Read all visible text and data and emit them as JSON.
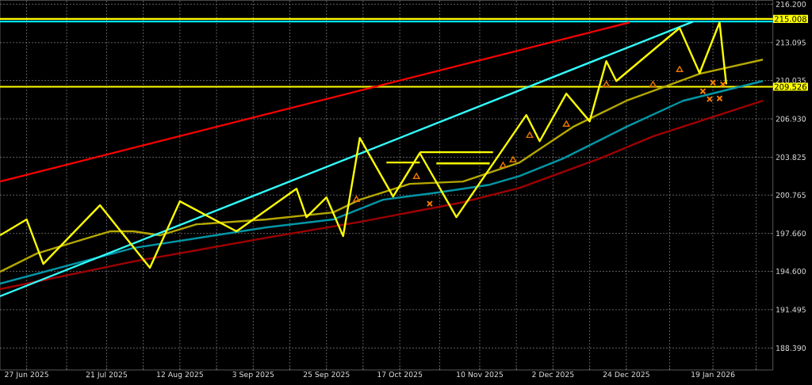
{
  "chart_data": {
    "type": "line",
    "xlim": [
      "2025-06-19",
      "2026-02-06"
    ],
    "ylim": [
      186.62,
      216.52
    ],
    "xticks": [
      {
        "value": "2025-06-27",
        "label": "27 Jun 2025"
      },
      {
        "value": "2025-07-09",
        "label": null
      },
      {
        "value": "2025-07-21",
        "label": "21 Jul 2025"
      },
      {
        "value": "2025-08-01",
        "label": null
      },
      {
        "value": "2025-08-12",
        "label": "12 Aug 2025"
      },
      {
        "value": "2025-08-23",
        "label": null
      },
      {
        "value": "2025-09-03",
        "label": "3 Sep 2025"
      },
      {
        "value": "2025-09-14",
        "label": null
      },
      {
        "value": "2025-09-25",
        "label": "25 Sep 2025"
      },
      {
        "value": "2025-10-06",
        "label": null
      },
      {
        "value": "2025-10-17",
        "label": "17 Oct 2025"
      },
      {
        "value": "2025-10-29",
        "label": null
      },
      {
        "value": "2025-11-10",
        "label": "10 Nov 2025"
      },
      {
        "value": "2025-11-21",
        "label": null
      },
      {
        "value": "2025-12-02",
        "label": "2 Dec 2025"
      },
      {
        "value": "2025-12-13",
        "label": null
      },
      {
        "value": "2025-12-24",
        "label": "24 Dec 2025"
      },
      {
        "value": "2026-01-06",
        "label": null
      },
      {
        "value": "2026-01-19",
        "label": "19 Jan 2026"
      },
      {
        "value": "2026-02-01",
        "label": null
      }
    ],
    "yticks": [
      {
        "value": 188.39,
        "label": "188.390"
      },
      {
        "value": 191.495,
        "label": "191.495"
      },
      {
        "value": 194.6,
        "label": "194.600"
      },
      {
        "value": 197.66,
        "label": "197.660"
      },
      {
        "value": 200.765,
        "label": "200.765"
      },
      {
        "value": 203.825,
        "label": "203.825"
      },
      {
        "value": 206.93,
        "label": "206.930"
      },
      {
        "value": 210.035,
        "label": "210.035"
      },
      {
        "value": 213.095,
        "label": "213.095"
      },
      {
        "value": 216.2,
        "label": "216.200"
      }
    ],
    "grid": true,
    "ref_lines": [
      {
        "axis": "y",
        "value": 214.8,
        "color": "#00e5ff"
      },
      {
        "axis": "y",
        "value": 215.008,
        "label": "215.008",
        "color": "#ffff00"
      },
      {
        "axis": "y",
        "value": 209.526,
        "label": "209.526",
        "color": "#ffff00"
      }
    ],
    "series": [
      {
        "color": "#b5a800",
        "x": [
          "2025-06-19",
          "2025-06-30",
          "2025-07-14",
          "2025-07-22",
          "2025-07-29",
          "2025-08-06",
          "2025-08-17",
          "2025-09-07",
          "2025-09-27",
          "2025-10-05",
          "2025-10-20",
          "2025-11-05",
          "2025-11-22",
          "2025-12-08",
          "2025-12-24",
          "2026-01-06",
          "2026-01-15",
          "2026-02-03"
        ],
        "values": [
          194.56,
          196.03,
          197.19,
          197.83,
          197.83,
          197.51,
          198.4,
          198.79,
          199.36,
          200.39,
          201.67,
          201.86,
          203.4,
          206.28,
          208.39,
          209.67,
          210.57,
          211.72
        ]
      },
      {
        "color": "#0097a7",
        "x": [
          "2025-06-19",
          "2025-07-29",
          "2025-09-07",
          "2025-09-27",
          "2025-10-12",
          "2025-10-28",
          "2025-11-13",
          "2025-11-22",
          "2025-12-05",
          "2025-12-24",
          "2026-01-10",
          "2026-02-03"
        ],
        "values": [
          193.6,
          196.48,
          198.15,
          198.79,
          200.39,
          200.96,
          201.6,
          202.31,
          203.72,
          206.28,
          208.39,
          209.99
        ]
      },
      {
        "color": "#a00000",
        "x": [
          "2025-06-19",
          "2025-07-29",
          "2025-09-07",
          "2025-10-05",
          "2025-11-05",
          "2025-11-22",
          "2025-12-16",
          "2026-01-01",
          "2026-02-03"
        ],
        "values": [
          193.15,
          195.39,
          197.31,
          198.59,
          200.19,
          201.35,
          203.72,
          205.51,
          208.39
        ]
      },
      {
        "color": "#ff0000",
        "x": [
          "2025-06-19",
          "2025-12-25"
        ],
        "values": [
          201.86,
          214.73
        ]
      },
      {
        "color": "#33ffff",
        "x": [
          "2025-06-19",
          "2026-01-13"
        ],
        "values": [
          192.58,
          214.79
        ]
      },
      {
        "color": "#ffff00",
        "x": [
          "2025-10-13",
          "2025-10-23"
        ],
        "values": [
          203.4,
          203.4
        ]
      },
      {
        "color": "#ffff00",
        "x": [
          "2025-10-23",
          "2025-11-14"
        ],
        "values": [
          204.23,
          204.23
        ]
      },
      {
        "color": "#ffff00",
        "x": [
          "2025-10-28",
          "2025-11-13"
        ],
        "values": [
          203.33,
          203.33
        ]
      },
      {
        "color": "#ffff00",
        "x": [
          "2025-06-19",
          "2025-06-27",
          "2025-07-02",
          "2025-07-19",
          "2025-08-03",
          "2025-08-12",
          "2025-08-29",
          "2025-09-16",
          "2025-09-19",
          "2025-09-25",
          "2025-09-30",
          "2025-10-05",
          "2025-10-15",
          "2025-10-23",
          "2025-11-03",
          "2025-11-24",
          "2025-11-28",
          "2025-12-06",
          "2025-12-13",
          "2025-12-18",
          "2025-12-21",
          "2026-01-09",
          "2026-01-15",
          "2026-01-21",
          "2026-01-23"
        ],
        "values": [
          197.51,
          198.79,
          195.2,
          199.94,
          194.88,
          200.26,
          197.83,
          201.28,
          198.98,
          200.58,
          197.44,
          205.38,
          200.64,
          204.16,
          198.98,
          207.24,
          205.12,
          208.97,
          206.73,
          211.59,
          209.99,
          214.28,
          210.63,
          214.73,
          209.73
        ]
      },
      {
        "type": "scatter",
        "marker": "triangle",
        "color": "#e67300",
        "x": [
          "2025-10-04",
          "2025-10-22",
          "2025-11-17",
          "2025-11-20",
          "2025-11-25",
          "2025-12-06",
          "2025-12-18",
          "2026-01-01",
          "2026-01-09"
        ],
        "values": [
          200.39,
          202.24,
          203.14,
          203.59,
          205.57,
          206.47,
          209.67,
          209.67,
          210.89
        ]
      },
      {
        "type": "scatter",
        "marker": "cross",
        "color": "#ff8000",
        "x": [
          "2025-10-26",
          "2026-01-16",
          "2026-01-19",
          "2026-01-22",
          "2026-01-18",
          "2026-01-21"
        ],
        "values": [
          200.07,
          209.16,
          209.86,
          209.73,
          208.52,
          208.58
        ]
      }
    ]
  }
}
